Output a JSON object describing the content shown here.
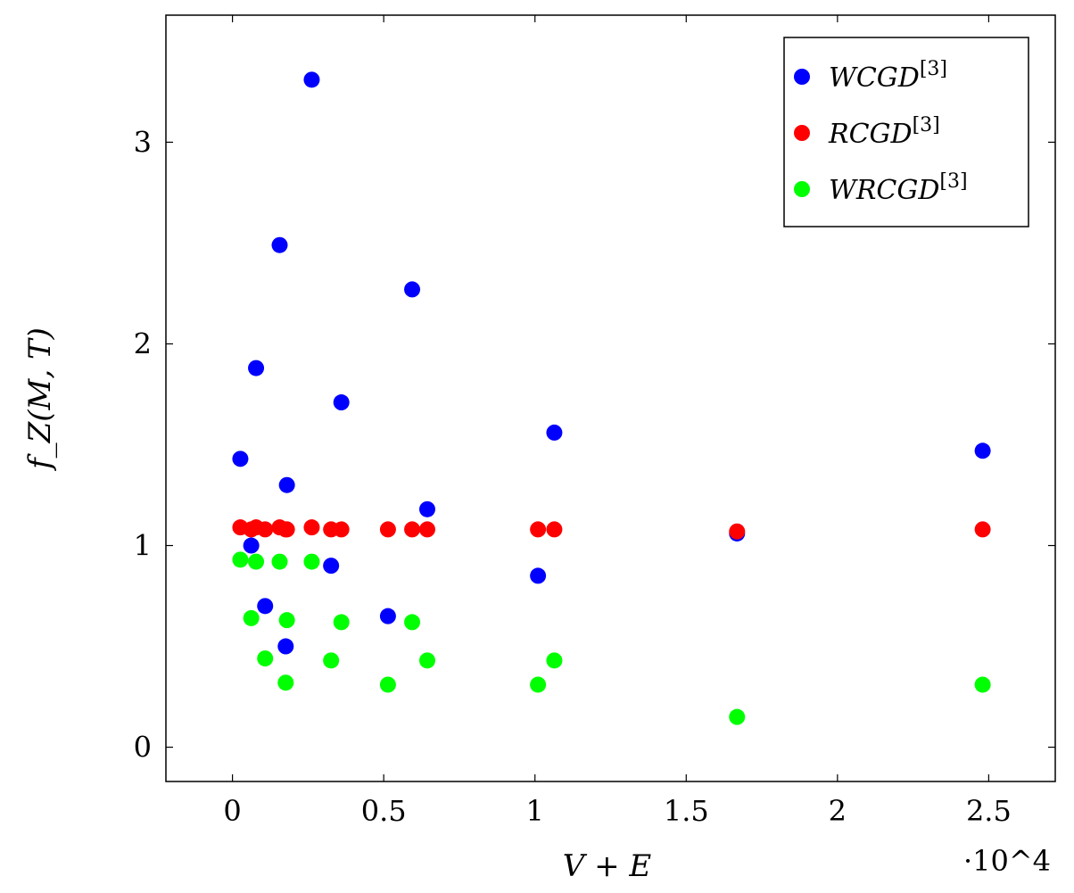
{
  "chart_data": {
    "type": "scatter",
    "title": "",
    "xlabel": "V + E",
    "ylabel": "f_Z(M, T)",
    "x_multiplier_label": "·10^4",
    "xlim": [
      -0.22,
      2.72
    ],
    "ylim": [
      -0.17,
      3.63
    ],
    "xticks": [
      0,
      0.5,
      1,
      1.5,
      2,
      2.5
    ],
    "xtick_labels": [
      "0",
      "0.5",
      "1",
      "1.5",
      "2",
      "2.5"
    ],
    "yticks": [
      0,
      1,
      2,
      3
    ],
    "ytick_labels": [
      "0",
      "1",
      "2",
      "3"
    ],
    "grid": false,
    "legend_position": "top-right",
    "series": [
      {
        "name": "WCGD[3]",
        "name_base": "WCGD",
        "name_sup": "[3]",
        "color": "#0000ff",
        "points": [
          [
            0.026,
            1.43
          ],
          [
            0.062,
            1.0
          ],
          [
            0.078,
            1.88
          ],
          [
            0.108,
            0.7
          ],
          [
            0.156,
            2.49
          ],
          [
            0.176,
            0.5
          ],
          [
            0.18,
            1.3
          ],
          [
            0.262,
            3.31
          ],
          [
            0.326,
            0.9
          ],
          [
            0.36,
            1.71
          ],
          [
            0.514,
            0.65
          ],
          [
            0.594,
            2.27
          ],
          [
            0.644,
            1.18
          ],
          [
            1.01,
            0.85
          ],
          [
            1.064,
            1.56
          ],
          [
            1.668,
            1.06
          ],
          [
            2.48,
            1.47
          ]
        ]
      },
      {
        "name": "RCGD[3]",
        "name_base": "RCGD",
        "name_sup": "[3]",
        "color": "#ff0000",
        "points": [
          [
            0.026,
            1.09
          ],
          [
            0.062,
            1.08
          ],
          [
            0.078,
            1.09
          ],
          [
            0.108,
            1.08
          ],
          [
            0.156,
            1.09
          ],
          [
            0.176,
            1.08
          ],
          [
            0.18,
            1.08
          ],
          [
            0.262,
            1.09
          ],
          [
            0.326,
            1.08
          ],
          [
            0.36,
            1.08
          ],
          [
            0.514,
            1.08
          ],
          [
            0.594,
            1.08
          ],
          [
            0.644,
            1.08
          ],
          [
            1.01,
            1.08
          ],
          [
            1.064,
            1.08
          ],
          [
            1.668,
            1.07
          ],
          [
            2.48,
            1.08
          ]
        ]
      },
      {
        "name": "WRCGD[3]",
        "name_base": "WRCGD",
        "name_sup": "[3]",
        "color": "#00ff00",
        "points": [
          [
            0.026,
            0.93
          ],
          [
            0.062,
            0.64
          ],
          [
            0.078,
            0.92
          ],
          [
            0.108,
            0.44
          ],
          [
            0.156,
            0.92
          ],
          [
            0.176,
            0.32
          ],
          [
            0.18,
            0.63
          ],
          [
            0.262,
            0.92
          ],
          [
            0.326,
            0.43
          ],
          [
            0.36,
            0.62
          ],
          [
            0.514,
            0.31
          ],
          [
            0.594,
            0.62
          ],
          [
            0.644,
            0.43
          ],
          [
            1.01,
            0.31
          ],
          [
            1.064,
            0.43
          ],
          [
            1.668,
            0.15
          ],
          [
            2.48,
            0.31
          ]
        ]
      }
    ]
  }
}
